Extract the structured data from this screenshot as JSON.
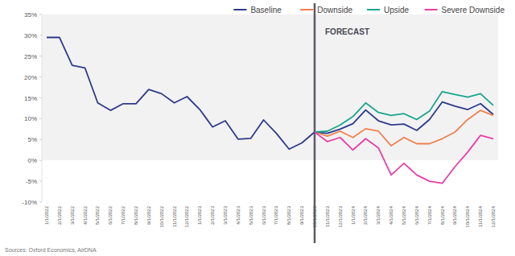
{
  "chart_data": {
    "type": "line",
    "categories": [
      "1/1/2022",
      "2/1/2022",
      "3/1/2022",
      "4/1/2022",
      "5/1/2022",
      "6/1/2022",
      "7/1/2022",
      "8/1/2022",
      "9/1/2022",
      "10/1/2022",
      "11/1/2022",
      "12/1/2022",
      "1/1/2023",
      "2/1/2023",
      "3/1/2023",
      "4/1/2023",
      "5/1/2023",
      "6/1/2023",
      "7/1/2023",
      "8/1/2023",
      "9/1/2023",
      "10/1/2023",
      "11/1/2023",
      "12/1/2023",
      "1/1/2024",
      "2/1/2024",
      "3/1/2024",
      "4/1/2024",
      "5/1/2024",
      "6/1/2024",
      "7/1/2024",
      "8/1/2024",
      "9/1/2024",
      "10/1/2024",
      "11/1/2024",
      "12/1/2024"
    ],
    "series": [
      {
        "name": "Baseline",
        "color": "#2e3a8c",
        "values": [
          29.5,
          29.5,
          22.8,
          22.2,
          13.8,
          12,
          13.6,
          13.6,
          17,
          16,
          13.8,
          15.3,
          12.2,
          8,
          9.5,
          5.1,
          5.3,
          9.7,
          6.5,
          2.7,
          4.2,
          6.8,
          6.5,
          7.5,
          8.8,
          12.1,
          9.5,
          8.5,
          8.7,
          7.2,
          9.8,
          14,
          13,
          12.2,
          13.6,
          11
        ]
      },
      {
        "name": "Downside",
        "color": "#f07f50",
        "values": [
          null,
          null,
          null,
          null,
          null,
          null,
          null,
          null,
          null,
          null,
          null,
          null,
          null,
          null,
          null,
          null,
          null,
          null,
          null,
          null,
          null,
          6.8,
          5.8,
          7,
          5.5,
          7.6,
          7,
          3.5,
          5.5,
          4,
          4,
          5.2,
          6.8,
          9.8,
          12,
          10.8
        ]
      },
      {
        "name": "Upside",
        "color": "#1aa58a",
        "values": [
          null,
          null,
          null,
          null,
          null,
          null,
          null,
          null,
          null,
          null,
          null,
          null,
          null,
          null,
          null,
          null,
          null,
          null,
          null,
          null,
          null,
          6.8,
          7,
          8.5,
          10.5,
          13.8,
          11.5,
          10.8,
          11.2,
          9.8,
          11.8,
          16.5,
          15.8,
          15.2,
          16,
          13.2
        ]
      },
      {
        "name": "Severe Downside",
        "color": "#e83fa8",
        "values": [
          null,
          null,
          null,
          null,
          null,
          null,
          null,
          null,
          null,
          null,
          null,
          null,
          null,
          null,
          null,
          null,
          null,
          null,
          null,
          null,
          null,
          6.8,
          4.5,
          5.5,
          2.5,
          5.2,
          3,
          -3.5,
          -0.7,
          -3.5,
          -5,
          -5.5,
          -1.5,
          2,
          6,
          5.2
        ]
      }
    ],
    "ylim": [
      -10,
      35
    ],
    "yticks": [
      {
        "value": -10,
        "label": "-10%"
      },
      {
        "value": -5,
        "label": "-5%"
      },
      {
        "value": 0,
        "label": "0%"
      },
      {
        "value": 5,
        "label": "5%"
      },
      {
        "value": 10,
        "label": "10%"
      },
      {
        "value": 15,
        "label": "15%"
      },
      {
        "value": 20,
        "label": "20%"
      },
      {
        "value": 25,
        "label": "25%"
      },
      {
        "value": 30,
        "label": "30%"
      },
      {
        "value": 35,
        "label": "35%"
      }
    ],
    "grid": false,
    "legend": "top",
    "annotations": [
      {
        "text": "FORECAST",
        "x": "10/1/2023"
      }
    ],
    "source": "Sources: Oxford Economics, AirDNA"
  }
}
